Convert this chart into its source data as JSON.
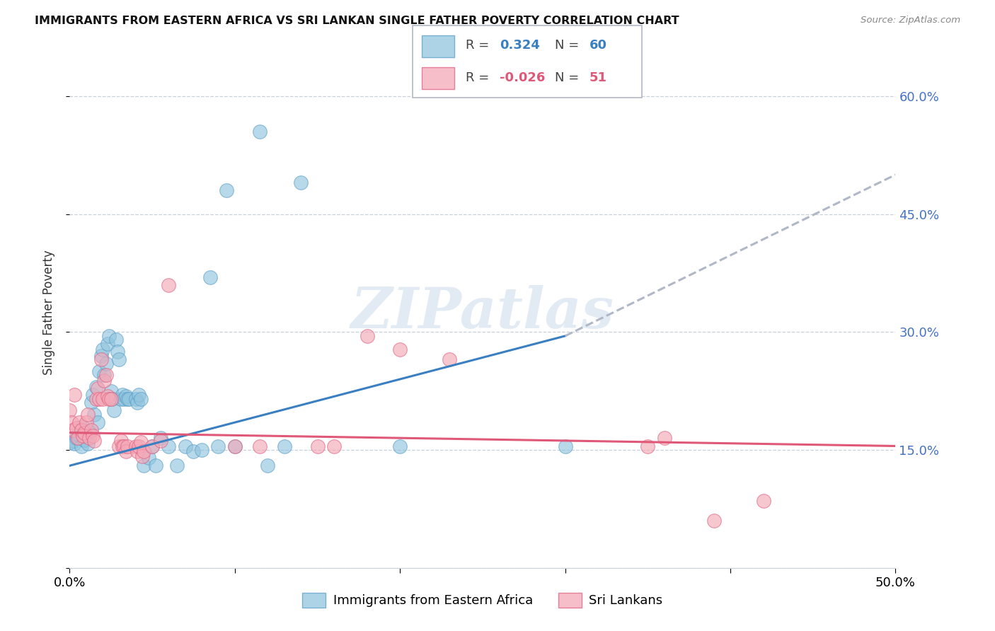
{
  "title": "IMMIGRANTS FROM EASTERN AFRICA VS SRI LANKAN SINGLE FATHER POVERTY CORRELATION CHART",
  "source": "Source: ZipAtlas.com",
  "ylabel": "Single Father Poverty",
  "yticks": [
    0.0,
    0.15,
    0.3,
    0.45,
    0.6
  ],
  "xlim": [
    0.0,
    0.5
  ],
  "ylim": [
    0.0,
    0.65
  ],
  "watermark": "ZIPatlas",
  "label1": "Immigrants from Eastern Africa",
  "label2": "Sri Lankans",
  "color1": "#92c5de",
  "color2": "#f4a9b8",
  "color1_edge": "#5a9dc8",
  "color2_edge": "#e06080",
  "trendline1_color": "#3a7fc1",
  "trendline2_color": "#e05878",
  "trendline_ext_color": "#b0b8c8",
  "blue_scatter": [
    [
      0.001,
      0.16
    ],
    [
      0.002,
      0.162
    ],
    [
      0.003,
      0.158
    ],
    [
      0.004,
      0.165
    ],
    [
      0.005,
      0.17
    ],
    [
      0.006,
      0.175
    ],
    [
      0.007,
      0.155
    ],
    [
      0.008,
      0.18
    ],
    [
      0.009,
      0.163
    ],
    [
      0.01,
      0.168
    ],
    [
      0.011,
      0.158
    ],
    [
      0.012,
      0.173
    ],
    [
      0.013,
      0.21
    ],
    [
      0.014,
      0.22
    ],
    [
      0.015,
      0.195
    ],
    [
      0.016,
      0.23
    ],
    [
      0.017,
      0.185
    ],
    [
      0.018,
      0.25
    ],
    [
      0.019,
      0.27
    ],
    [
      0.02,
      0.278
    ],
    [
      0.021,
      0.245
    ],
    [
      0.022,
      0.26
    ],
    [
      0.023,
      0.285
    ],
    [
      0.024,
      0.295
    ],
    [
      0.025,
      0.225
    ],
    [
      0.026,
      0.215
    ],
    [
      0.027,
      0.2
    ],
    [
      0.028,
      0.29
    ],
    [
      0.029,
      0.275
    ],
    [
      0.03,
      0.265
    ],
    [
      0.031,
      0.215
    ],
    [
      0.032,
      0.22
    ],
    [
      0.033,
      0.215
    ],
    [
      0.034,
      0.218
    ],
    [
      0.035,
      0.215
    ],
    [
      0.036,
      0.215
    ],
    [
      0.04,
      0.215
    ],
    [
      0.041,
      0.21
    ],
    [
      0.042,
      0.22
    ],
    [
      0.043,
      0.215
    ],
    [
      0.045,
      0.13
    ],
    [
      0.048,
      0.14
    ],
    [
      0.05,
      0.155
    ],
    [
      0.052,
      0.13
    ],
    [
      0.055,
      0.165
    ],
    [
      0.06,
      0.155
    ],
    [
      0.065,
      0.13
    ],
    [
      0.07,
      0.155
    ],
    [
      0.075,
      0.148
    ],
    [
      0.08,
      0.15
    ],
    [
      0.085,
      0.37
    ],
    [
      0.09,
      0.155
    ],
    [
      0.095,
      0.48
    ],
    [
      0.1,
      0.155
    ],
    [
      0.115,
      0.555
    ],
    [
      0.12,
      0.13
    ],
    [
      0.13,
      0.155
    ],
    [
      0.14,
      0.49
    ],
    [
      0.2,
      0.155
    ],
    [
      0.3,
      0.155
    ]
  ],
  "pink_scatter": [
    [
      0.0,
      0.2
    ],
    [
      0.001,
      0.185
    ],
    [
      0.002,
      0.175
    ],
    [
      0.003,
      0.22
    ],
    [
      0.004,
      0.178
    ],
    [
      0.005,
      0.165
    ],
    [
      0.006,
      0.185
    ],
    [
      0.007,
      0.175
    ],
    [
      0.008,
      0.168
    ],
    [
      0.009,
      0.172
    ],
    [
      0.01,
      0.185
    ],
    [
      0.011,
      0.195
    ],
    [
      0.012,
      0.165
    ],
    [
      0.013,
      0.175
    ],
    [
      0.014,
      0.168
    ],
    [
      0.015,
      0.162
    ],
    [
      0.016,
      0.215
    ],
    [
      0.017,
      0.228
    ],
    [
      0.018,
      0.215
    ],
    [
      0.019,
      0.265
    ],
    [
      0.02,
      0.215
    ],
    [
      0.021,
      0.238
    ],
    [
      0.022,
      0.245
    ],
    [
      0.023,
      0.218
    ],
    [
      0.024,
      0.215
    ],
    [
      0.025,
      0.215
    ],
    [
      0.03,
      0.155
    ],
    [
      0.031,
      0.162
    ],
    [
      0.032,
      0.155
    ],
    [
      0.033,
      0.155
    ],
    [
      0.034,
      0.148
    ],
    [
      0.035,
      0.155
    ],
    [
      0.04,
      0.155
    ],
    [
      0.041,
      0.148
    ],
    [
      0.042,
      0.155
    ],
    [
      0.043,
      0.16
    ],
    [
      0.044,
      0.142
    ],
    [
      0.045,
      0.148
    ],
    [
      0.05,
      0.155
    ],
    [
      0.055,
      0.162
    ],
    [
      0.06,
      0.36
    ],
    [
      0.1,
      0.155
    ],
    [
      0.115,
      0.155
    ],
    [
      0.15,
      0.155
    ],
    [
      0.16,
      0.155
    ],
    [
      0.18,
      0.295
    ],
    [
      0.2,
      0.278
    ],
    [
      0.23,
      0.265
    ],
    [
      0.35,
      0.155
    ],
    [
      0.36,
      0.165
    ],
    [
      0.39,
      0.06
    ],
    [
      0.42,
      0.085
    ]
  ],
  "trendline1_x": [
    0.0,
    0.3,
    0.5
  ],
  "trendline1_y": [
    0.13,
    0.295,
    0.5
  ],
  "trendline1_solid_end": 0.3,
  "trendline2_x": [
    0.0,
    0.5
  ],
  "trendline2_y": [
    0.172,
    0.155
  ]
}
